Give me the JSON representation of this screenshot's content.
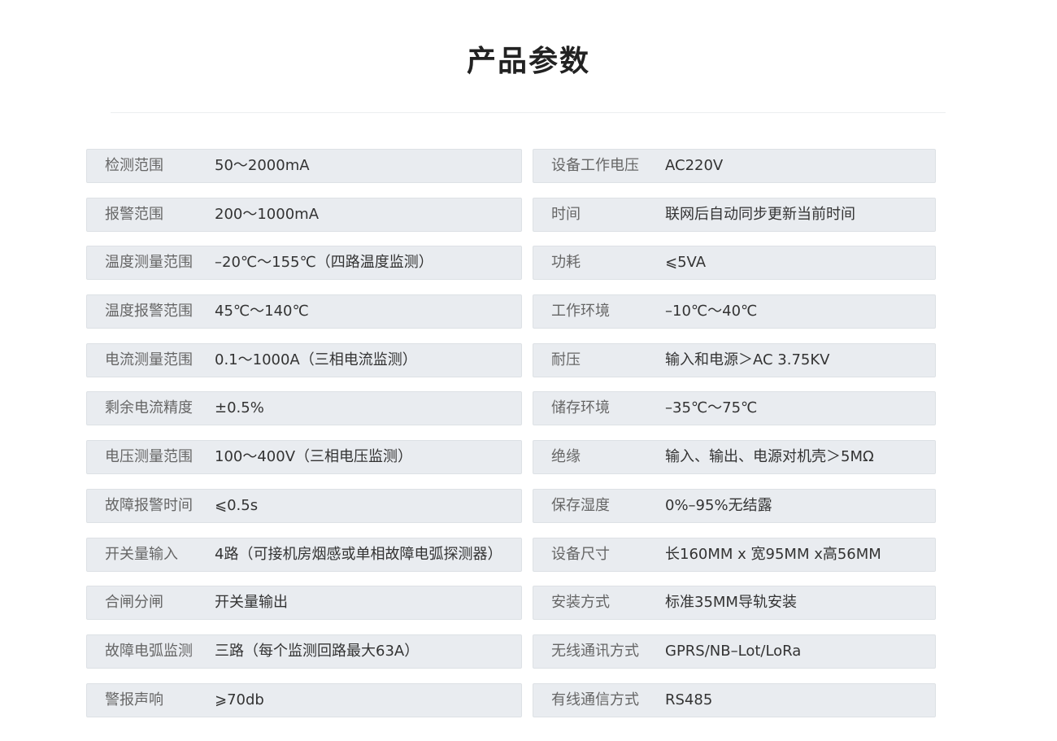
{
  "title": "产品参数",
  "left": [
    {
      "label": "检测范围",
      "value": "50～2000mA"
    },
    {
      "label": "报警范围",
      "value": "200～1000mA"
    },
    {
      "label": "温度测量范围",
      "value": "–20℃～155℃（四路温度监测）"
    },
    {
      "label": "温度报警范围",
      "value": "45℃～140℃"
    },
    {
      "label": "电流测量范围",
      "value": "0.1～1000A（三相电流监测）"
    },
    {
      "label": "剩余电流精度",
      "value": "±0.5%"
    },
    {
      "label": "电压测量范围",
      "value": "100～400V（三相电压监测）"
    },
    {
      "label": "故障报警时间",
      "value": "⩽0.5s"
    },
    {
      "label": "开关量输入",
      "value": "4路（可接机房烟感或单相故障电弧探测器）"
    },
    {
      "label": "合闸分闸",
      "value": "开关量输出"
    },
    {
      "label": "故障电弧监测",
      "value": "三路（每个监测回路最大63A）"
    },
    {
      "label": "警报声响",
      "value": "⩾70db"
    }
  ],
  "right": [
    {
      "label": "设备工作电压",
      "value": "AC220V"
    },
    {
      "label": "时间",
      "value": "联网后自动同步更新当前时间"
    },
    {
      "label": "功耗",
      "value": "⩽5VA"
    },
    {
      "label": "工作环境",
      "value": "–10℃～40℃"
    },
    {
      "label": "耐压",
      "value": "输入和电源＞AC 3.75KV"
    },
    {
      "label": "储存环境",
      "value": "–35℃～75℃"
    },
    {
      "label": "绝缘",
      "value": "输入、输出、电源对机壳＞5MΩ"
    },
    {
      "label": "保存湿度",
      "value": "0%–95%无结露"
    },
    {
      "label": "设备尺寸",
      "value": "长160MM x 宽95MM x高56MM"
    },
    {
      "label": "安装方式",
      "value": "标准35MM导轨安装"
    },
    {
      "label": "无线通讯方式",
      "value": "GPRS/NB–Lot/LoRa"
    },
    {
      "label": "有线通信方式",
      "value": "RS485"
    }
  ]
}
